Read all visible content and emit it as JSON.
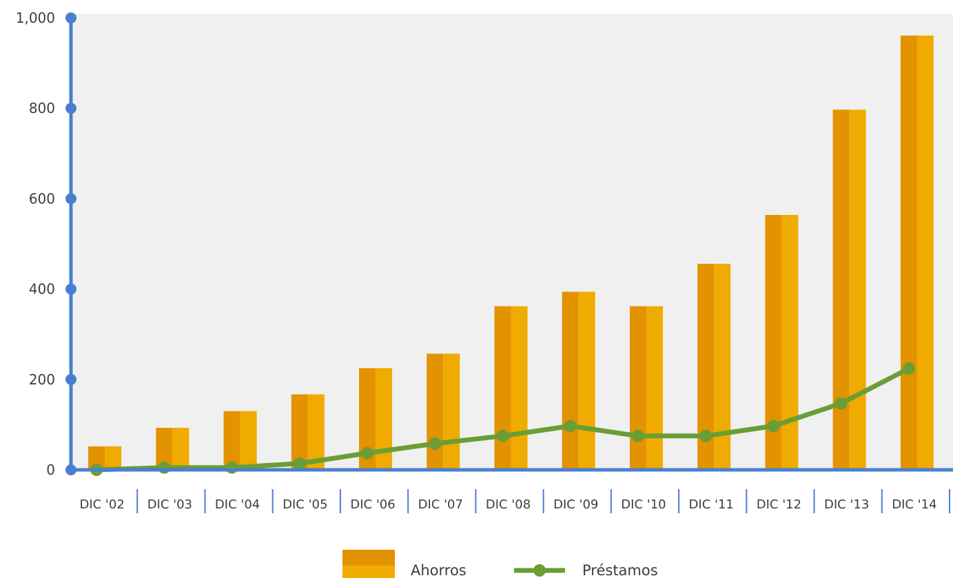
{
  "chart_data": {
    "type": "bar",
    "categories": [
      "DIC '02",
      "DIC '03",
      "DIC '04",
      "DIC '05",
      "DIC '06",
      "DIC '07",
      "DIC '08",
      "DIC '09",
      "DIC '10",
      "DIC '11",
      "DIC '12",
      "DIC '13",
      "DIC '14"
    ],
    "series": [
      {
        "name": "Ahorros",
        "type": "bar",
        "values": [
          52,
          93,
          130,
          167,
          225,
          257,
          362,
          394,
          362,
          456,
          564,
          797,
          961
        ]
      },
      {
        "name": "Préstamos",
        "type": "line",
        "values": [
          0,
          5,
          5,
          14,
          37,
          58,
          75,
          97,
          75,
          75,
          97,
          147,
          224
        ]
      }
    ],
    "yticks": [
      "0",
      "200",
      "400",
      "600",
      "800",
      "1,000"
    ],
    "ylim": [
      0,
      1000
    ],
    "legend_position": "bottom",
    "colors": {
      "bar_dark": "#e39200",
      "bar_light": "#f0ab00",
      "line": "#6a9e35",
      "axis": "#4a7fcf",
      "plot_bg": "#f0f0f0"
    }
  }
}
